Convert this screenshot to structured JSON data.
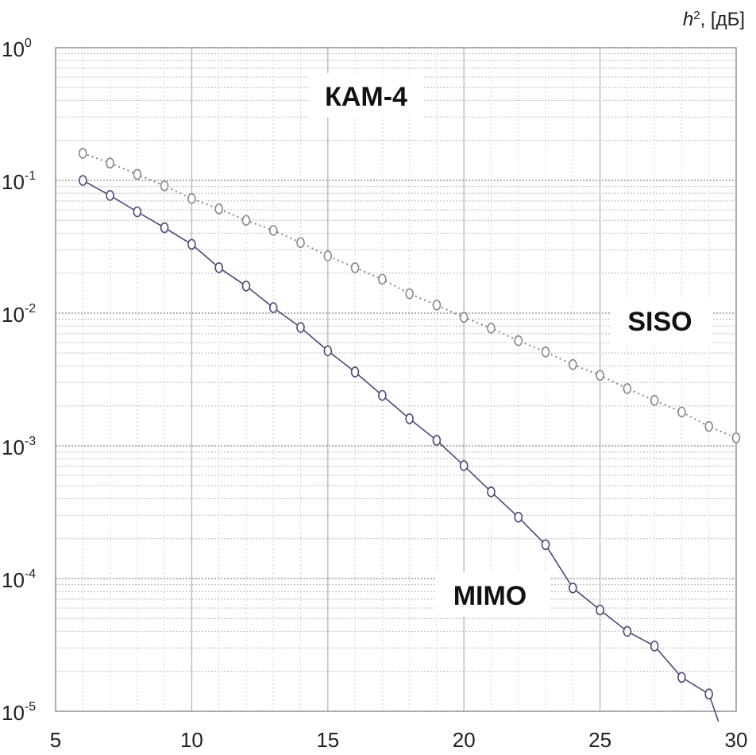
{
  "chart_data": {
    "type": "line",
    "xlabel": "h², [дБ]",
    "x_ticks": [
      "5",
      "10",
      "15",
      "20",
      "25",
      "30"
    ],
    "y_ticks": [
      {
        "base": "10",
        "exp": "0"
      },
      {
        "base": "10",
        "exp": "-1"
      },
      {
        "base": "10",
        "exp": "-2"
      },
      {
        "base": "10",
        "exp": "-3"
      },
      {
        "base": "10",
        "exp": "-4"
      },
      {
        "base": "10",
        "exp": "-5"
      }
    ],
    "xlim": [
      5,
      30
    ],
    "ylim": [
      1e-05,
      1
    ],
    "yscale": "log",
    "grid": true,
    "annotations": [
      "КАМ-4",
      "SISO",
      "MIMO"
    ],
    "series": [
      {
        "name": "SISO",
        "color": "#888888",
        "linestyle": "dotted",
        "marker": "circle",
        "x": [
          6,
          7,
          8,
          9,
          10,
          11,
          12,
          13,
          14,
          15,
          16,
          17,
          18,
          19,
          20,
          21,
          22,
          23,
          24,
          25,
          26,
          27,
          28,
          29,
          30
        ],
        "y": [
          0.16,
          0.135,
          0.111,
          0.091,
          0.073,
          0.061,
          0.05,
          0.042,
          0.034,
          0.027,
          0.022,
          0.018,
          0.014,
          0.0115,
          0.0093,
          0.0077,
          0.0062,
          0.0051,
          0.0041,
          0.0034,
          0.0027,
          0.0022,
          0.0018,
          0.0014,
          0.00115
        ]
      },
      {
        "name": "MIMO",
        "color": "#4a4a7a",
        "linestyle": "solid",
        "marker": "circle",
        "x": [
          6,
          7,
          8,
          9,
          10,
          11,
          12,
          13,
          14,
          15,
          16,
          17,
          18,
          19,
          20,
          21,
          22,
          23,
          24,
          25,
          26,
          27,
          28,
          29
        ],
        "y": [
          0.1,
          0.077,
          0.058,
          0.044,
          0.033,
          0.022,
          0.016,
          0.011,
          0.0078,
          0.0052,
          0.0036,
          0.0024,
          0.0016,
          0.0011,
          0.00071,
          0.00045,
          0.00029,
          0.00018,
          8.5e-05,
          5.8e-05,
          4e-05,
          3.1e-05,
          1.8e-05,
          1.35e-05
        ]
      }
    ]
  }
}
